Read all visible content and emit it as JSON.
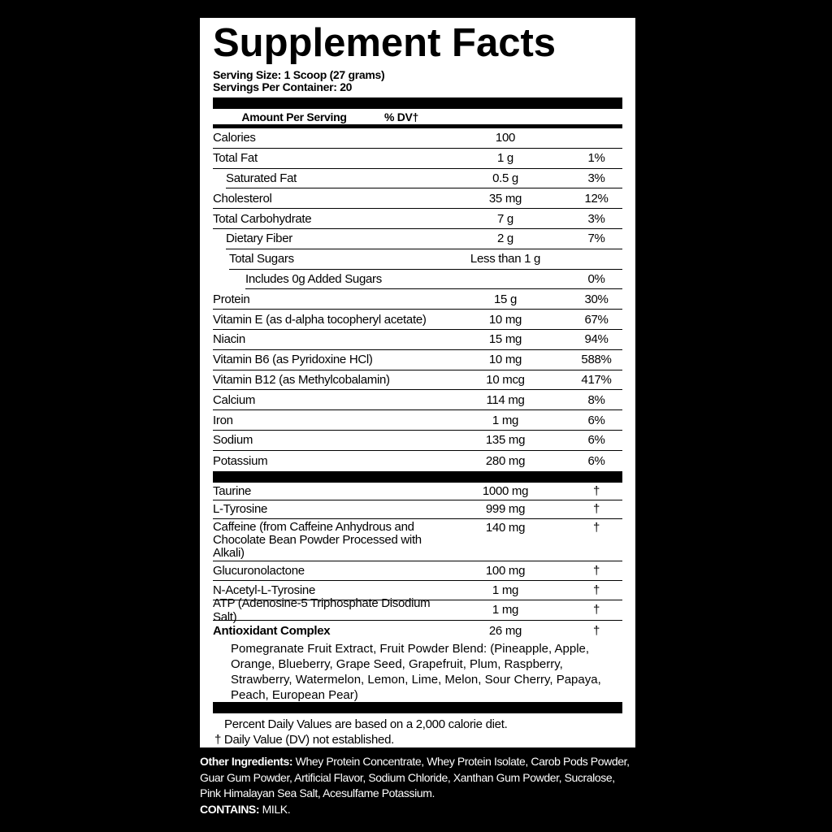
{
  "title": "Supplement Facts",
  "serving_size": {
    "label": "Serving Size:",
    "value": "1 Scoop (27 grams)"
  },
  "servings_per_container": {
    "label": "Servings Per Container:",
    "value": "20"
  },
  "header": {
    "amount": "Amount Per Serving",
    "dv": "% DV†"
  },
  "nutrients": [
    {
      "name": "Calories",
      "amount": "100"
    },
    {
      "name": "Total Fat",
      "amount": "1 g",
      "dv": "1%"
    },
    {
      "name": "Saturated Fat",
      "amount": "0.5 g",
      "dv": "3%"
    },
    {
      "name": "Cholesterol",
      "amount": "35 mg",
      "dv": "12%"
    },
    {
      "name": "Total Carbohydrate",
      "amount": "7 g",
      "dv": "3%"
    },
    {
      "name": "Dietary Fiber",
      "amount": "2 g",
      "dv": "7%"
    },
    {
      "name": "Total Sugars",
      "amount": "Less than 1 g"
    },
    {
      "name": "Includes 0g Added Sugars",
      "dv": "0%"
    },
    {
      "name": "Protein",
      "amount": "15 g",
      "dv": "30%"
    },
    {
      "name": "Vitamin E (as d-alpha tocopheryl acetate)",
      "amount": "10 mg",
      "dv": "67%"
    },
    {
      "name": "Niacin",
      "amount": "15 mg",
      "dv": "94%"
    },
    {
      "name": "Vitamin B6 (as Pyridoxine HCl)",
      "amount": "10 mg",
      "dv": "588%"
    },
    {
      "name": "Vitamin B12 (as Methylcobalamin)",
      "amount": "10 mcg",
      "dv": "417%"
    },
    {
      "name": "Calcium",
      "amount": "114 mg",
      "dv": "8%"
    },
    {
      "name": "Iron",
      "amount": "1 mg",
      "dv": "6%"
    },
    {
      "name": "Sodium",
      "amount": "135 mg",
      "dv": "6%"
    },
    {
      "name": "Potassium",
      "amount": "280 mg",
      "dv": "6%"
    }
  ],
  "ingredients": [
    {
      "name": "Taurine",
      "amount": "1000 mg",
      "dv": "†"
    },
    {
      "name": "L-Tyrosine",
      "amount": "999 mg",
      "dv": "†"
    },
    {
      "name": "Caffeine (from Caffeine Anhydrous and Chocolate Bean Powder Processed with Alkali)",
      "amount": "140 mg",
      "dv": "†"
    },
    {
      "name": "Glucuronolactone",
      "amount": "100 mg",
      "dv": "†"
    },
    {
      "name": "N-Acetyl-L-Tyrosine",
      "amount": "1 mg",
      "dv": "†"
    },
    {
      "name": "ATP (Adenosine-5 Triphosphate Disodium Salt)",
      "amount": "1 mg",
      "dv": "†"
    },
    {
      "name": "Antioxidant Complex",
      "amount": "26 mg",
      "dv": "†",
      "description": "Pomegranate Fruit Extract, Fruit Powder Blend: (Pineapple, Apple, Orange, Blueberry, Grape Seed, Grapefruit, Plum, Raspberry, Strawberry, Watermelon, Lemon, Lime, Melon, Sour Cherry, Papaya, Peach, European Pear)"
    }
  ],
  "footnotes": [
    "Percent Daily Values are based on a 2,000 calorie diet.",
    "† Daily Value (DV) not established."
  ],
  "other_ingredients": {
    "label": "Other Ingredients:",
    "text": "Whey Protein Concentrate, Whey Protein Isolate, Carob Pods Powder, Guar Gum Powder, Artificial Flavor, Sodium Chloride, Xanthan Gum Powder, Sucralose, Pink Himalayan Sea Salt, Acesulfame Potassium."
  },
  "contains": {
    "label": "CONTAINS:",
    "text": "MILK."
  }
}
